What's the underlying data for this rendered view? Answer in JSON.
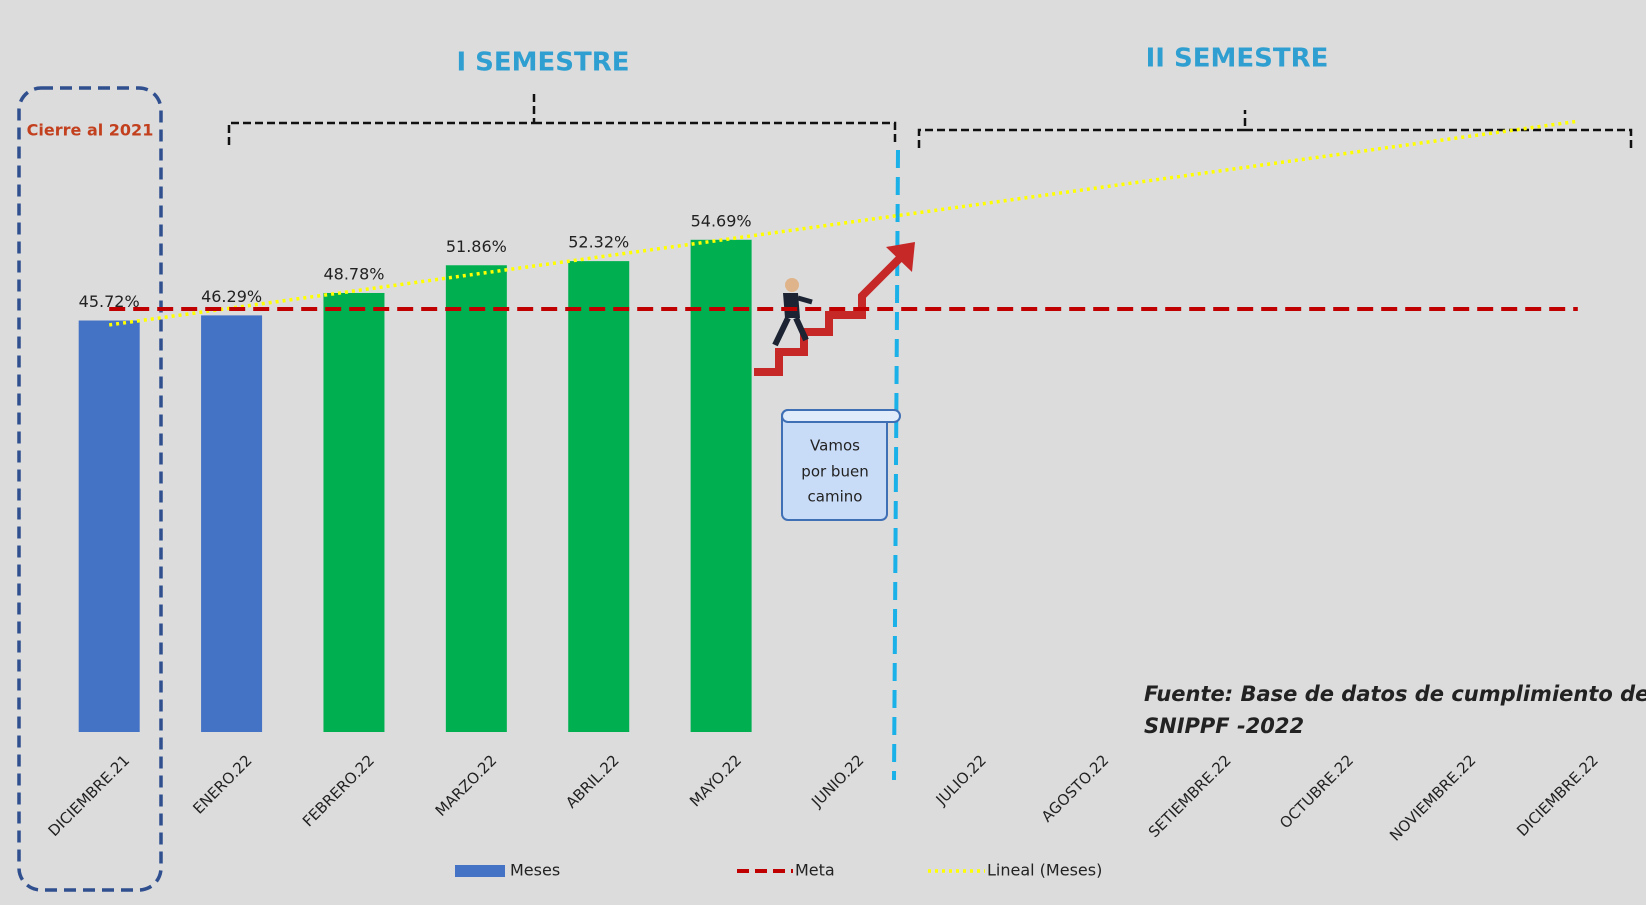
{
  "chart_data": {
    "type": "bar",
    "categories": [
      "DICIEMBRE.21",
      "ENERO.22",
      "FEBRERO.22",
      "MARZO.22",
      "ABRIL.22",
      "MAYO.22",
      "JUNIO.22",
      "JULIO.22",
      "AGOSTO.22",
      "SETIEMBRE.22",
      "OCTUBRE.22",
      "NOVIEMBRE.22",
      "DICIEMBRE.22"
    ],
    "series": [
      {
        "name": "Meses",
        "color": "#4472c4",
        "bar_colors": [
          "#4472c4",
          "#4472c4",
          "#00b050",
          "#00b050",
          "#00b050",
          "#00b050",
          null,
          null,
          null,
          null,
          null,
          null,
          null
        ],
        "values": [
          45.72,
          46.29,
          48.78,
          51.86,
          52.32,
          54.69,
          null,
          null,
          null,
          null,
          null,
          null,
          null
        ],
        "value_labels": [
          "45.72%",
          "46.29%",
          "48.78%",
          "51.86%",
          "52.32%",
          "54.69%",
          null,
          null,
          null,
          null,
          null,
          null,
          null
        ],
        "trendline": {
          "name": "Lineal (Meses)",
          "color": "#ffff00"
        }
      },
      {
        "name": "Meta",
        "color": "#c00000",
        "style": "dashed",
        "values": [
          47,
          47,
          47,
          47,
          47,
          47,
          47,
          47,
          47,
          47,
          47,
          47,
          47
        ]
      }
    ],
    "ylim": [
      0,
      80
    ],
    "semesters": [
      "I SEMESTRE",
      "II SEMESTRE"
    ],
    "closing_label": "Cierre al 2021",
    "callout": [
      "Vamos",
      "por buen",
      "camino"
    ],
    "source": [
      "Fuente: Base de datos de cumplimiento del",
      "SNIPPF -2022"
    ]
  }
}
